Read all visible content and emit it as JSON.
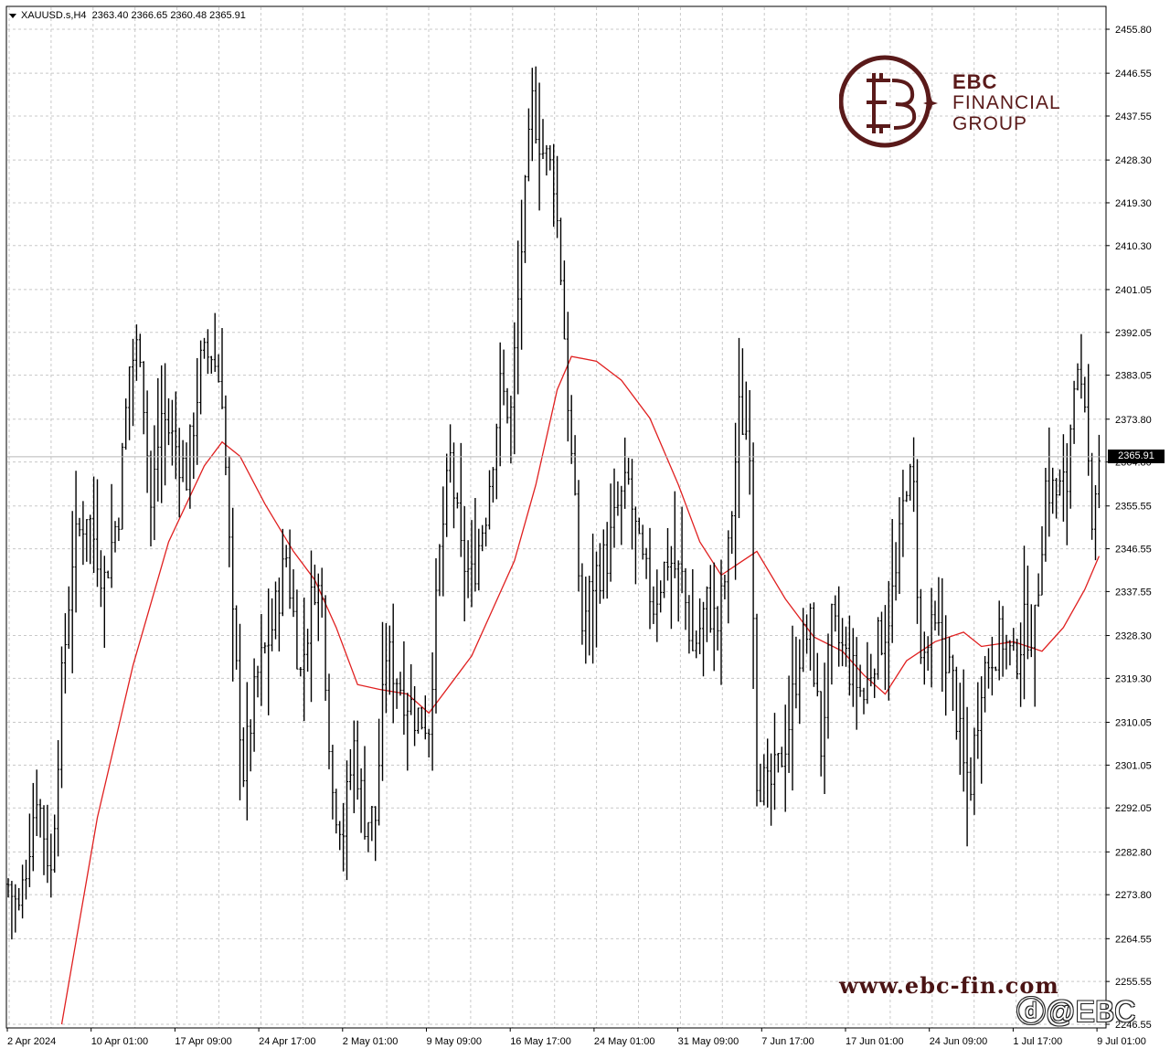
{
  "header": {
    "symbol": "XAUUSD.s,H4",
    "open": "2363.40",
    "high": "2366.65",
    "low": "2360.48",
    "close": "2365.91"
  },
  "current_price_label": "2365.91",
  "logo": {
    "line1": "EBC",
    "line2": "FINANCIAL",
    "line3": "GROUP"
  },
  "watermark_url": "www.ebc-fin.com",
  "watermark_handle": "@EBC",
  "colors": {
    "bars": "#000000",
    "moving_average": "#e02020",
    "grid": "#c0c0c0",
    "logo": "#5a1a1a"
  },
  "chart_data": {
    "type": "ohlc",
    "title": "XAUUSD.s,H4",
    "ylim": [
      2246.55,
      2455.8
    ],
    "y_ticks": [
      "2455.80",
      "2446.55",
      "2437.55",
      "2428.30",
      "2419.30",
      "2410.30",
      "2401.05",
      "2392.05",
      "2383.05",
      "2373.80",
      "2364.80",
      "2355.55",
      "2346.55",
      "2337.55",
      "2328.30",
      "2319.30",
      "2310.05",
      "2301.05",
      "2292.05",
      "2282.80",
      "2273.80",
      "2264.55",
      "2255.55",
      "2246.55"
    ],
    "x_ticks": [
      "2 Apr 2024",
      "10 Apr 01:00",
      "17 Apr 09:00",
      "24 Apr 17:00",
      "2 May 01:00",
      "9 May 09:00",
      "16 May 17:00",
      "24 May 01:00",
      "31 May 09:00",
      "7 Jun 17:00",
      "17 Jun 01:00",
      "24 Jun 09:00",
      "1 Jul 17:00",
      "9 Jul 01:00"
    ],
    "price_path": [
      {
        "i": 0,
        "p": 2276
      },
      {
        "i": 3,
        "p": 2270
      },
      {
        "i": 8,
        "p": 2296
      },
      {
        "i": 12,
        "p": 2278
      },
      {
        "i": 15,
        "p": 2318
      },
      {
        "i": 18,
        "p": 2345
      },
      {
        "i": 22,
        "p": 2355
      },
      {
        "i": 27,
        "p": 2340
      },
      {
        "i": 31,
        "p": 2355
      },
      {
        "i": 34,
        "p": 2385
      },
      {
        "i": 37,
        "p": 2390
      },
      {
        "i": 40,
        "p": 2355
      },
      {
        "i": 43,
        "p": 2375
      },
      {
        "i": 47,
        "p": 2368
      },
      {
        "i": 50,
        "p": 2362
      },
      {
        "i": 54,
        "p": 2385
      },
      {
        "i": 57,
        "p": 2388
      },
      {
        "i": 60,
        "p": 2380
      },
      {
        "i": 63,
        "p": 2330
      },
      {
        "i": 66,
        "p": 2300
      },
      {
        "i": 70,
        "p": 2320
      },
      {
        "i": 74,
        "p": 2330
      },
      {
        "i": 78,
        "p": 2345
      },
      {
        "i": 82,
        "p": 2320
      },
      {
        "i": 86,
        "p": 2340
      },
      {
        "i": 88,
        "p": 2335
      },
      {
        "i": 91,
        "p": 2295
      },
      {
        "i": 94,
        "p": 2288
      },
      {
        "i": 97,
        "p": 2305
      },
      {
        "i": 100,
        "p": 2290
      },
      {
        "i": 103,
        "p": 2290
      },
      {
        "i": 106,
        "p": 2325
      },
      {
        "i": 110,
        "p": 2318
      },
      {
        "i": 114,
        "p": 2312
      },
      {
        "i": 118,
        "p": 2310
      },
      {
        "i": 121,
        "p": 2345
      },
      {
        "i": 124,
        "p": 2365
      },
      {
        "i": 127,
        "p": 2345
      },
      {
        "i": 130,
        "p": 2340
      },
      {
        "i": 134,
        "p": 2355
      },
      {
        "i": 138,
        "p": 2380
      },
      {
        "i": 141,
        "p": 2375
      },
      {
        "i": 144,
        "p": 2410
      },
      {
        "i": 147,
        "p": 2440
      },
      {
        "i": 150,
        "p": 2430
      },
      {
        "i": 153,
        "p": 2425
      },
      {
        "i": 155,
        "p": 2405
      },
      {
        "i": 158,
        "p": 2365
      },
      {
        "i": 161,
        "p": 2330
      },
      {
        "i": 164,
        "p": 2340
      },
      {
        "i": 168,
        "p": 2345
      },
      {
        "i": 171,
        "p": 2355
      },
      {
        "i": 174,
        "p": 2360
      },
      {
        "i": 177,
        "p": 2345
      },
      {
        "i": 181,
        "p": 2335
      },
      {
        "i": 185,
        "p": 2345
      },
      {
        "i": 189,
        "p": 2340
      },
      {
        "i": 192,
        "p": 2325
      },
      {
        "i": 196,
        "p": 2335
      },
      {
        "i": 199,
        "p": 2330
      },
      {
        "i": 202,
        "p": 2345
      },
      {
        "i": 205,
        "p": 2375
      },
      {
        "i": 208,
        "p": 2370
      },
      {
        "i": 210,
        "p": 2300
      },
      {
        "i": 213,
        "p": 2295
      },
      {
        "i": 216,
        "p": 2300
      },
      {
        "i": 219,
        "p": 2310
      },
      {
        "i": 222,
        "p": 2325
      },
      {
        "i": 225,
        "p": 2330
      },
      {
        "i": 228,
        "p": 2305
      },
      {
        "i": 231,
        "p": 2330
      },
      {
        "i": 234,
        "p": 2325
      },
      {
        "i": 237,
        "p": 2320
      },
      {
        "i": 240,
        "p": 2315
      },
      {
        "i": 243,
        "p": 2325
      },
      {
        "i": 246,
        "p": 2330
      },
      {
        "i": 249,
        "p": 2340
      },
      {
        "i": 252,
        "p": 2362
      },
      {
        "i": 254,
        "p": 2358
      },
      {
        "i": 256,
        "p": 2322
      },
      {
        "i": 259,
        "p": 2328
      },
      {
        "i": 262,
        "p": 2328
      },
      {
        "i": 265,
        "p": 2318
      },
      {
        "i": 268,
        "p": 2300
      },
      {
        "i": 270,
        "p": 2298
      },
      {
        "i": 273,
        "p": 2320
      },
      {
        "i": 276,
        "p": 2325
      },
      {
        "i": 279,
        "p": 2328
      },
      {
        "i": 282,
        "p": 2322
      },
      {
        "i": 285,
        "p": 2330
      },
      {
        "i": 288,
        "p": 2330
      },
      {
        "i": 291,
        "p": 2360
      },
      {
        "i": 294,
        "p": 2358
      },
      {
        "i": 297,
        "p": 2360
      },
      {
        "i": 299,
        "p": 2385
      },
      {
        "i": 302,
        "p": 2372
      },
      {
        "i": 304,
        "p": 2355
      },
      {
        "i": 306,
        "p": 2365.91
      }
    ],
    "moving_average": [
      {
        "i": 15,
        "p": 2246.55
      },
      {
        "i": 25,
        "p": 2290
      },
      {
        "i": 35,
        "p": 2322
      },
      {
        "i": 45,
        "p": 2348
      },
      {
        "i": 55,
        "p": 2364
      },
      {
        "i": 60,
        "p": 2369
      },
      {
        "i": 65,
        "p": 2366
      },
      {
        "i": 72,
        "p": 2356
      },
      {
        "i": 80,
        "p": 2346
      },
      {
        "i": 86,
        "p": 2340
      },
      {
        "i": 92,
        "p": 2330
      },
      {
        "i": 98,
        "p": 2318
      },
      {
        "i": 104,
        "p": 2317
      },
      {
        "i": 112,
        "p": 2316
      },
      {
        "i": 118,
        "p": 2312
      },
      {
        "i": 124,
        "p": 2318
      },
      {
        "i": 130,
        "p": 2324
      },
      {
        "i": 136,
        "p": 2334
      },
      {
        "i": 142,
        "p": 2344
      },
      {
        "i": 148,
        "p": 2360
      },
      {
        "i": 154,
        "p": 2380
      },
      {
        "i": 158,
        "p": 2387
      },
      {
        "i": 165,
        "p": 2386
      },
      {
        "i": 172,
        "p": 2382
      },
      {
        "i": 180,
        "p": 2374
      },
      {
        "i": 188,
        "p": 2360
      },
      {
        "i": 194,
        "p": 2348
      },
      {
        "i": 200,
        "p": 2341
      },
      {
        "i": 206,
        "p": 2344
      },
      {
        "i": 210,
        "p": 2346
      },
      {
        "i": 218,
        "p": 2336
      },
      {
        "i": 226,
        "p": 2328
      },
      {
        "i": 234,
        "p": 2325
      },
      {
        "i": 240,
        "p": 2320
      },
      {
        "i": 246,
        "p": 2316
      },
      {
        "i": 252,
        "p": 2323
      },
      {
        "i": 260,
        "p": 2327
      },
      {
        "i": 268,
        "p": 2329
      },
      {
        "i": 273,
        "p": 2326
      },
      {
        "i": 282,
        "p": 2327
      },
      {
        "i": 290,
        "p": 2325
      },
      {
        "i": 296,
        "p": 2330
      },
      {
        "i": 302,
        "p": 2338
      },
      {
        "i": 306,
        "p": 2345
      }
    ]
  }
}
